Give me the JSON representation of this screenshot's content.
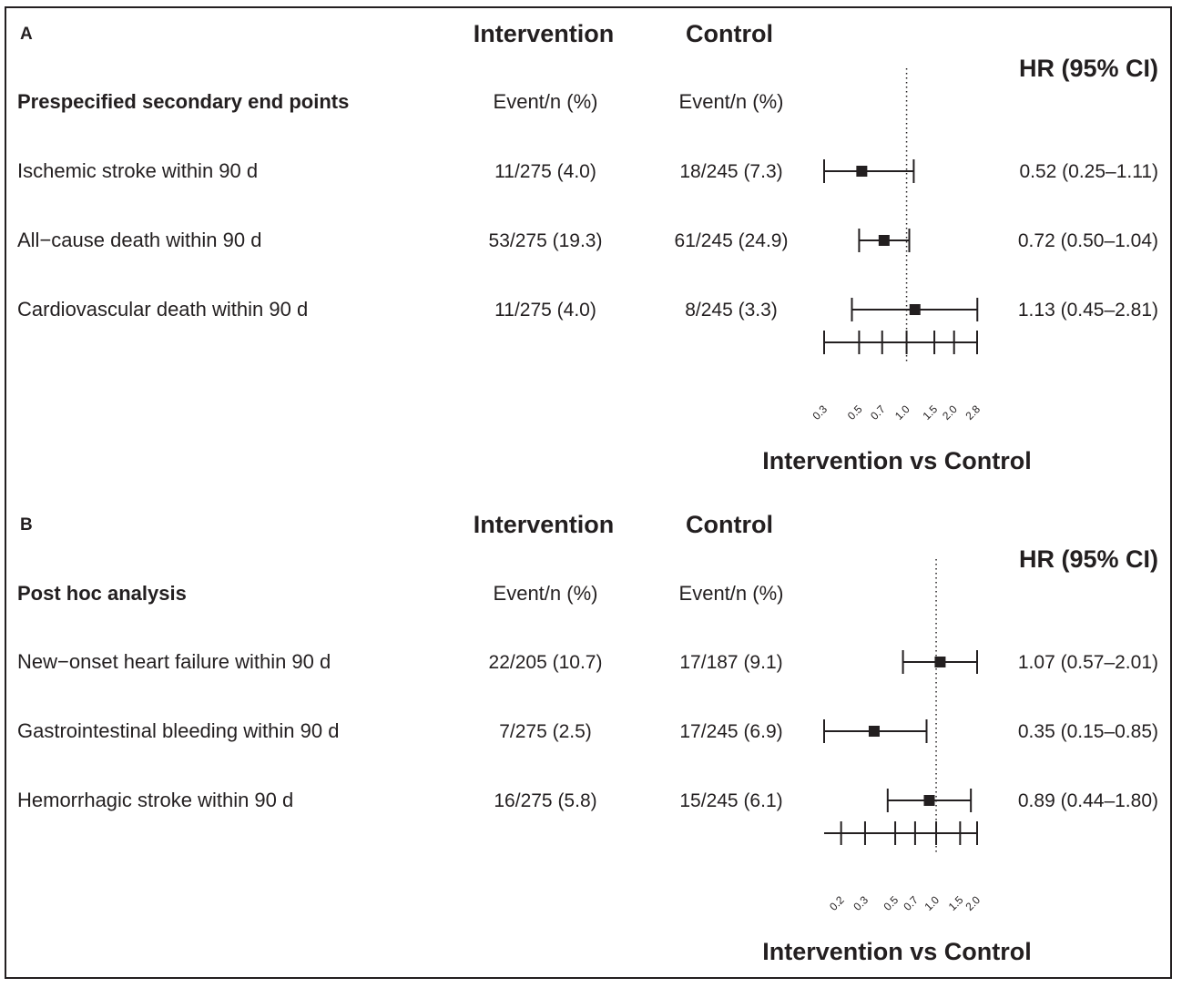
{
  "chart_data": [
    {
      "type": "forest",
      "panel": "A",
      "group_headers": [
        "Intervention",
        "Control"
      ],
      "hr_header": "HR (95% CI)",
      "section_label": "Prespecified secondary end points",
      "subheaders": [
        "Event/n (%)",
        "Event/n (%)"
      ],
      "xlabel": "Intervention vs Control",
      "x_scale": "log",
      "xlim": [
        0.3,
        2.8
      ],
      "x_ticks": [
        0.3,
        0.5,
        0.7,
        1.0,
        1.5,
        2.0,
        2.8
      ],
      "x_tick_labels": [
        "0.3",
        "0.5",
        "0.7",
        "1.0",
        "1.5",
        "2.0",
        "2.8"
      ],
      "reference_line": 1.0,
      "rows": [
        {
          "label": "Ischemic stroke within 90 d",
          "intervention": "11/275 (4.0)",
          "control": "18/245 (7.3)",
          "hr_text": "0.52 (0.25–1.11)",
          "hr": 0.52,
          "lo": 0.3,
          "hi": 1.11
        },
        {
          "label": "All−cause death within 90 d",
          "intervention": "53/275 (19.3)",
          "control": "61/245 (24.9)",
          "hr_text": "0.72 (0.50–1.04)",
          "hr": 0.72,
          "lo": 0.5,
          "hi": 1.04
        },
        {
          "label": "Cardiovascular death within 90 d",
          "intervention": "11/275 (4.0)",
          "control": "8/245 (3.3)",
          "hr_text": "1.13 (0.45–2.81)",
          "hr": 1.13,
          "lo": 0.45,
          "hi": 2.81
        }
      ]
    },
    {
      "type": "forest",
      "panel": "B",
      "group_headers": [
        "Intervention",
        "Control"
      ],
      "hr_header": "HR (95% CI)",
      "section_label": "Post hoc analysis",
      "subheaders": [
        "Event/n (%)",
        "Event/n (%)"
      ],
      "xlabel": "Intervention vs Control",
      "x_scale": "log",
      "xlim": [
        0.15,
        2.0
      ],
      "x_ticks": [
        0.2,
        0.3,
        0.5,
        0.7,
        1.0,
        1.5,
        2.0
      ],
      "x_tick_labels": [
        "0.2",
        "0.3",
        "0.5",
        "0.7",
        "1.0",
        "1.5",
        "2.0"
      ],
      "reference_line": 1.0,
      "rows": [
        {
          "label": "New−onset heart failure within 90 d",
          "intervention": "22/205 (10.7)",
          "control": "17/187 (9.1)",
          "hr_text": "1.07 (0.57–2.01)",
          "hr": 1.07,
          "lo": 0.57,
          "hi": 2.0
        },
        {
          "label": "Gastrointestinal bleeding within 90 d",
          "intervention": "7/275 (2.5)",
          "control": "17/245 (6.9)",
          "hr_text": "0.35 (0.15–0.85)",
          "hr": 0.35,
          "lo": 0.15,
          "hi": 0.85
        },
        {
          "label": "Hemorrhagic stroke within 90 d",
          "intervention": "16/275 (5.8)",
          "control": "15/245 (6.1)",
          "hr_text": "0.89 (0.44–1.80)",
          "hr": 0.89,
          "lo": 0.44,
          "hi": 1.8
        }
      ]
    }
  ]
}
